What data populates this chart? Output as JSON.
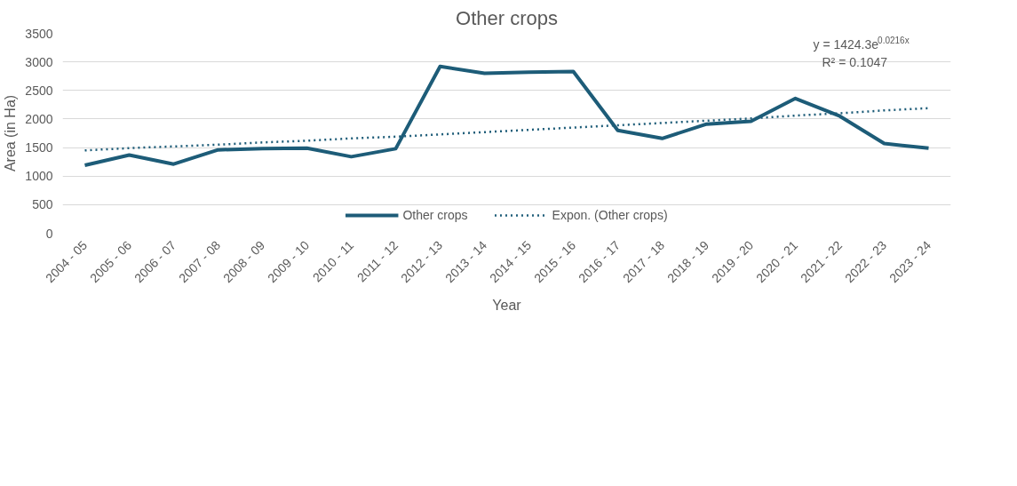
{
  "chart_data": {
    "type": "line",
    "title": "Other crops",
    "xlabel": "Year",
    "ylabel": "Area (in Ha)",
    "categories": [
      "2004 - 05",
      "2005 - 06",
      "2006 - 07",
      "2007 - 08",
      "2008 - 09",
      "2009 - 10",
      "2010 - 11",
      "2011 - 12",
      "2012 - 13",
      "2013 - 14",
      "2014 - 15",
      "2015 - 16",
      "2016 - 17",
      "2017 - 18",
      "2018 - 19",
      "2019 - 20",
      "2020 - 21",
      "2021 - 22",
      "2022 - 23",
      "2023 - 24"
    ],
    "series": [
      {
        "name": "Other crops",
        "color": "#1d5c78",
        "line_style": "solid",
        "values": [
          1190,
          1370,
          1210,
          1460,
          1480,
          1490,
          1340,
          1480,
          2920,
          2800,
          2820,
          2830,
          1800,
          1660,
          1910,
          1960,
          2360,
          2050,
          1570,
          1490
        ]
      },
      {
        "name": "Expon. (Other crops)",
        "color": "#1d5c78",
        "line_style": "dotted",
        "values": [
          1450,
          1490,
          1520,
          1550,
          1590,
          1620,
          1660,
          1690,
          1730,
          1770,
          1810,
          1850,
          1890,
          1930,
          1970,
          2010,
          2060,
          2100,
          2150,
          2190
        ]
      }
    ],
    "annotations": [
      "y = 1424.3e$^{0.0216x}$",
      "R² = 0.1047"
    ],
    "ylim": [
      0,
      3500
    ],
    "yticks": [
      0,
      500,
      1000,
      1500,
      2000,
      2500,
      3000,
      3500
    ],
    "grid": "y",
    "legend": "bottom",
    "marker": "none"
  }
}
